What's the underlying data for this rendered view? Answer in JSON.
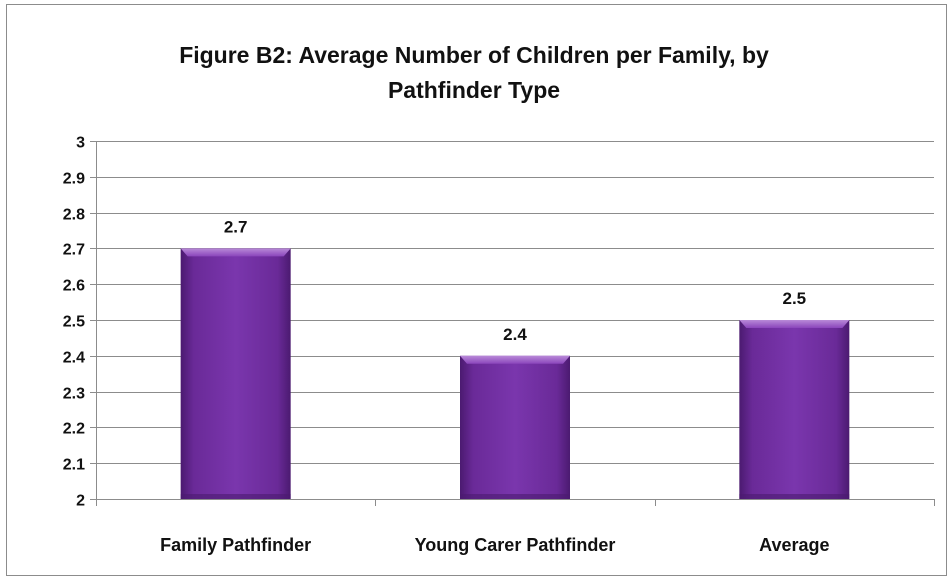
{
  "chart_data": {
    "type": "bar",
    "title_lines": [
      "Figure B2: Average Number of Children per Family, by",
      "Pathfinder Type"
    ],
    "xlabel": "",
    "ylabel": "",
    "categories": [
      "Family Pathfinder",
      "Young Carer Pathfinder",
      "Average"
    ],
    "values": [
      2.7,
      2.4,
      2.5
    ],
    "data_labels": [
      "2.7",
      "2.4",
      "2.5"
    ],
    "ylim": [
      2,
      3
    ],
    "y_ticks": [
      "2",
      "2.1",
      "2.2",
      "2.3",
      "2.4",
      "2.5",
      "2.6",
      "2.7",
      "2.8",
      "2.9",
      "3"
    ],
    "grid": true,
    "legend": "none",
    "colors": {
      "bar": "#7030a0",
      "bar_light": "#9b59c6",
      "bar_dark": "#4b1a70",
      "grid": "#8c8c8c",
      "axis": "#8c8c8c"
    }
  }
}
